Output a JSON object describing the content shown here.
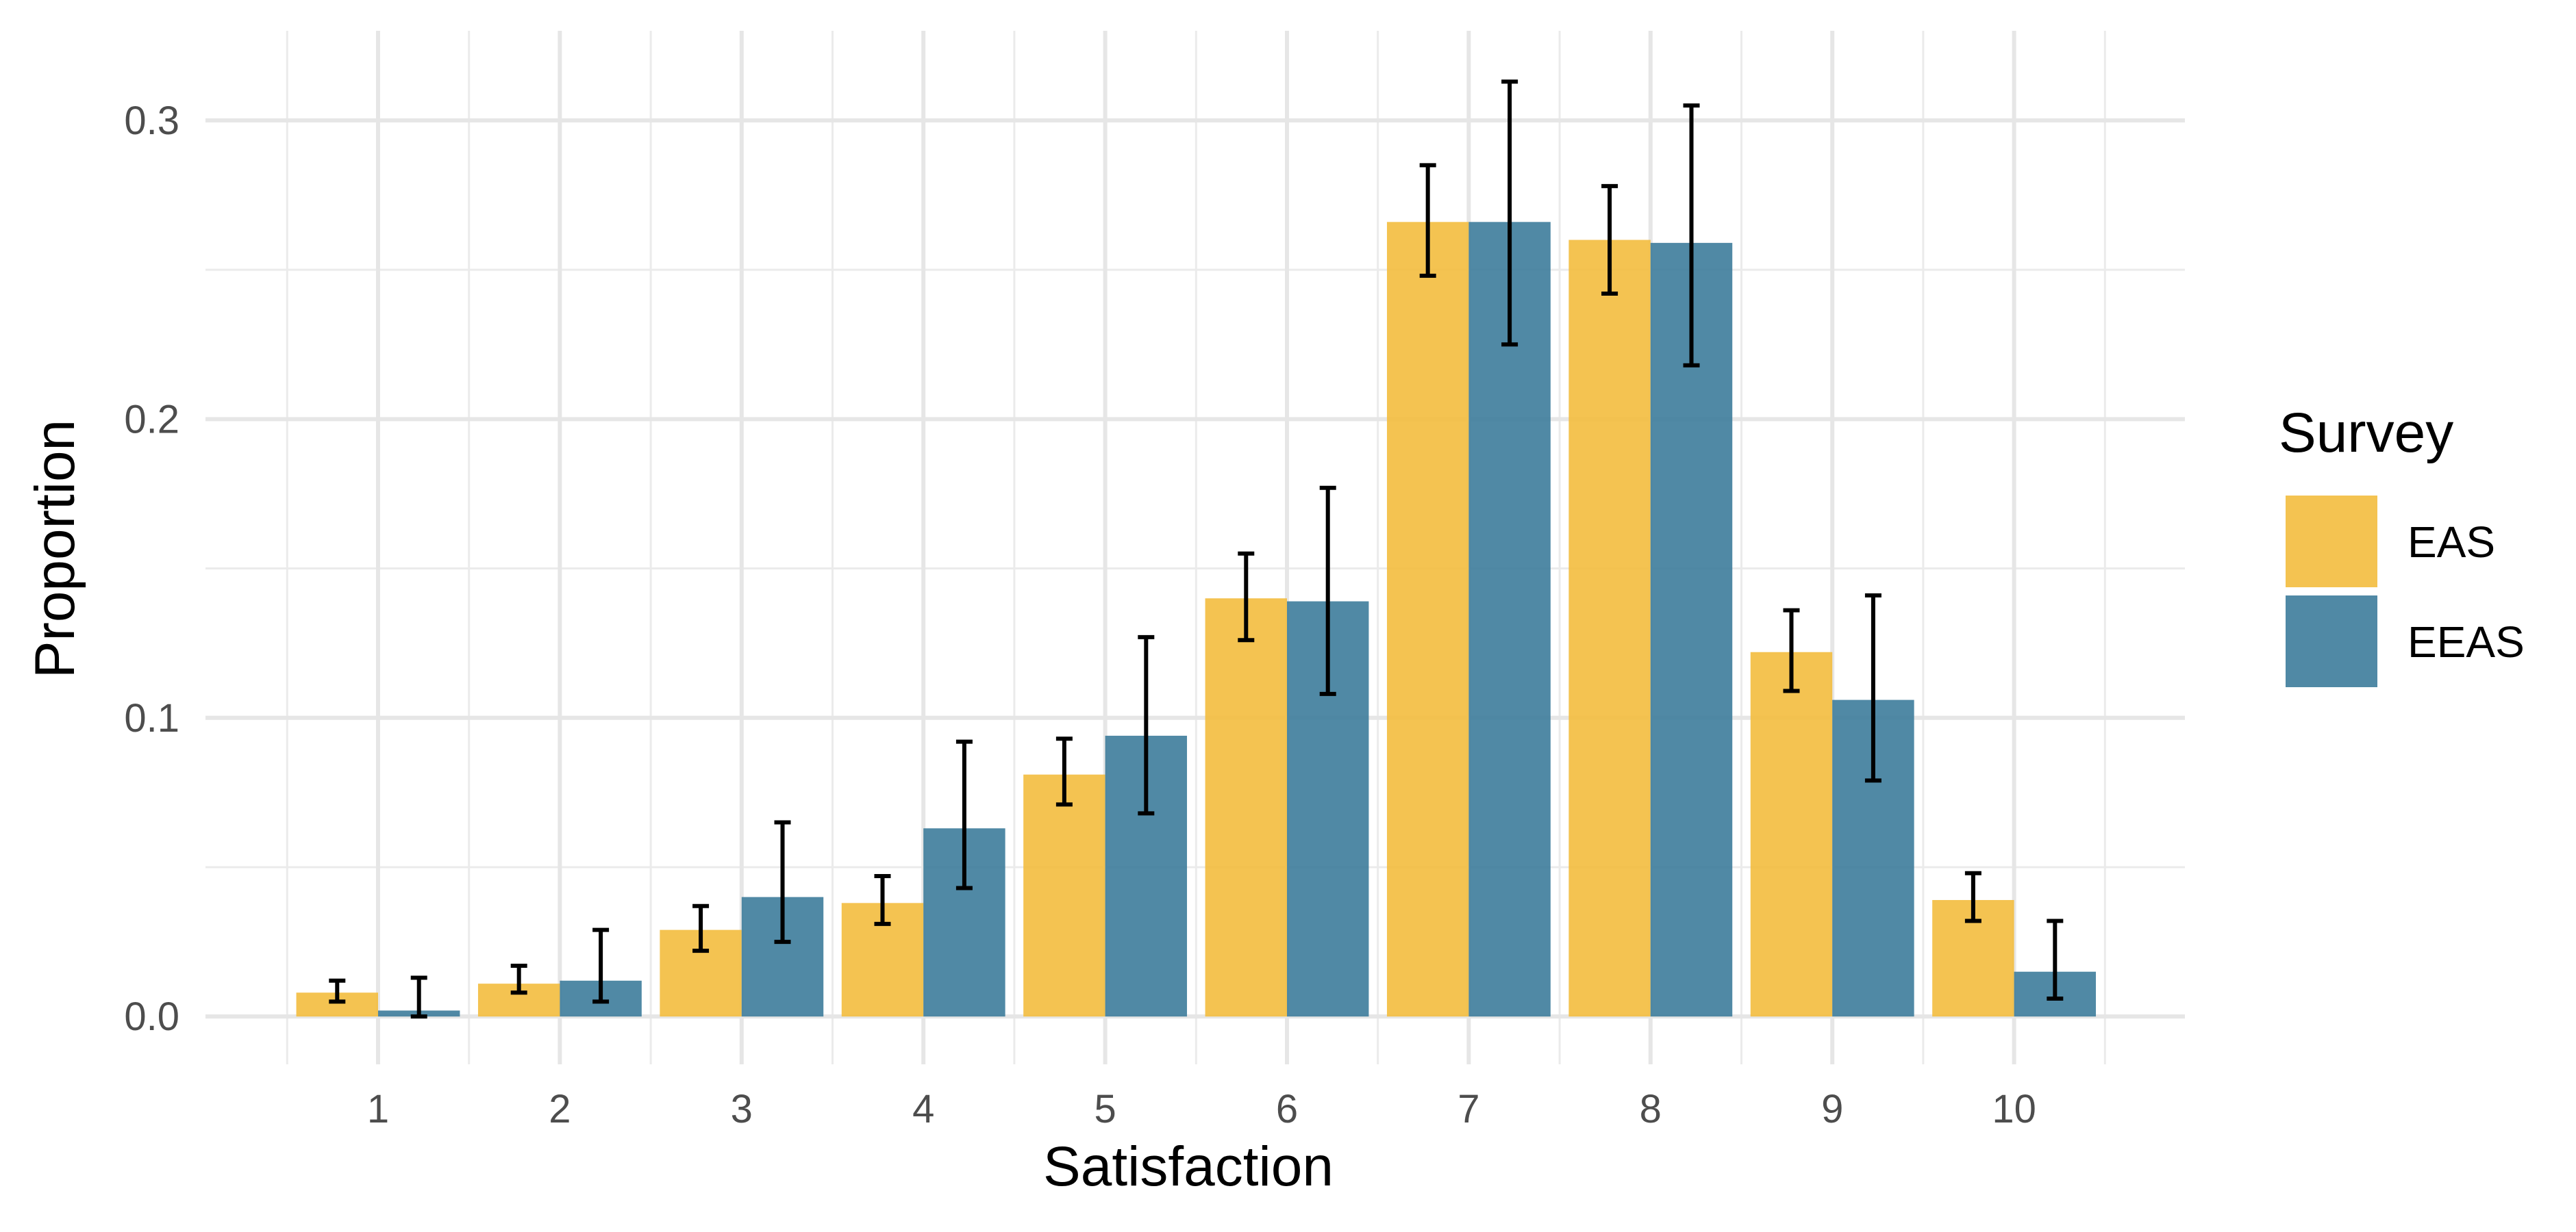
{
  "chart_data": {
    "type": "bar",
    "xlabel": "Satisfaction",
    "ylabel": "Proportion",
    "categories": [
      "1",
      "2",
      "3",
      "4",
      "5",
      "6",
      "7",
      "8",
      "9",
      "10"
    ],
    "ylim": [
      -0.016,
      0.33
    ],
    "yticks": [
      {
        "value": 0.0,
        "label": "0.0"
      },
      {
        "value": 0.1,
        "label": "0.1"
      },
      {
        "value": 0.2,
        "label": "0.2"
      },
      {
        "value": 0.3,
        "label": "0.3"
      }
    ],
    "grid": true,
    "legend": {
      "title": "Survey",
      "position": "right"
    },
    "series": [
      {
        "name": "EAS",
        "color": "#F3BC3E",
        "values": [
          0.008,
          0.011,
          0.029,
          0.038,
          0.081,
          0.14,
          0.266,
          0.26,
          0.122,
          0.039
        ],
        "err_low": [
          0.005,
          0.008,
          0.022,
          0.031,
          0.071,
          0.126,
          0.248,
          0.242,
          0.109,
          0.032
        ],
        "err_high": [
          0.012,
          0.017,
          0.037,
          0.047,
          0.093,
          0.155,
          0.285,
          0.278,
          0.136,
          0.048
        ]
      },
      {
        "name": "EEAS",
        "color": "#3D7C9B",
        "values": [
          0.002,
          0.012,
          0.04,
          0.063,
          0.094,
          0.139,
          0.266,
          0.259,
          0.106,
          0.015
        ],
        "err_low": [
          0.0,
          0.005,
          0.025,
          0.043,
          0.068,
          0.108,
          0.225,
          0.218,
          0.079,
          0.006
        ],
        "err_high": [
          0.013,
          0.029,
          0.065,
          0.092,
          0.127,
          0.177,
          0.313,
          0.305,
          0.141,
          0.032
        ]
      }
    ]
  }
}
